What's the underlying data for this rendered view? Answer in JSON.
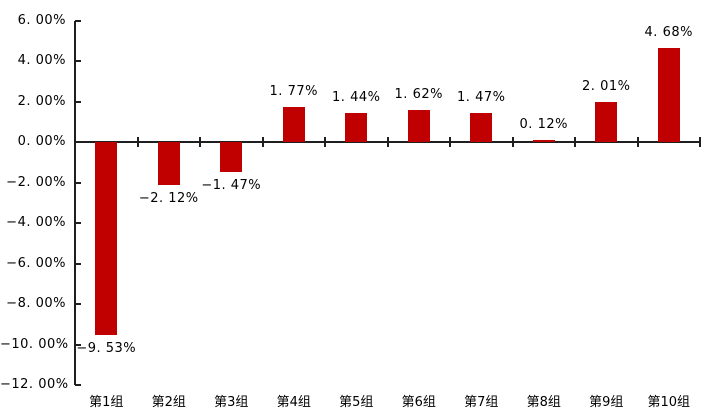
{
  "chart": {
    "background_color": "#ffffff",
    "bar_color": "#c00000",
    "axis_color": "#1f1f1f",
    "text_color": "#000000"
  },
  "chart_data": {
    "type": "bar",
    "title": "",
    "xlabel": "",
    "ylabel": "",
    "categories": [
      "第1组",
      "第2组",
      "第3组",
      "第4组",
      "第5组",
      "第6组",
      "第7组",
      "第8组",
      "第9组",
      "第10组"
    ],
    "values": [
      -9.53,
      -2.12,
      -1.47,
      1.77,
      1.44,
      1.62,
      1.47,
      0.12,
      2.01,
      4.68
    ],
    "data_labels": [
      "−9. 53%",
      "−2. 12%",
      "−1. 47%",
      "1. 77%",
      "1. 44%",
      "1. 62%",
      "1. 47%",
      "0. 12%",
      "2. 01%",
      "4. 68%"
    ],
    "unit": "%",
    "ylim": [
      -12,
      6
    ],
    "ytick_step": 2,
    "yticks": [
      6,
      4,
      2,
      0,
      -2,
      -4,
      -6,
      -8,
      -10,
      -12
    ],
    "ytick_labels": [
      "6. 00%",
      "4. 00%",
      "2. 00%",
      "0. 00%",
      "−2. 00%",
      "−4. 00%",
      "−6. 00%",
      "−8. 00%",
      "−10. 00%",
      "−12. 00%"
    ],
    "grid": false,
    "legend_position": "none"
  }
}
